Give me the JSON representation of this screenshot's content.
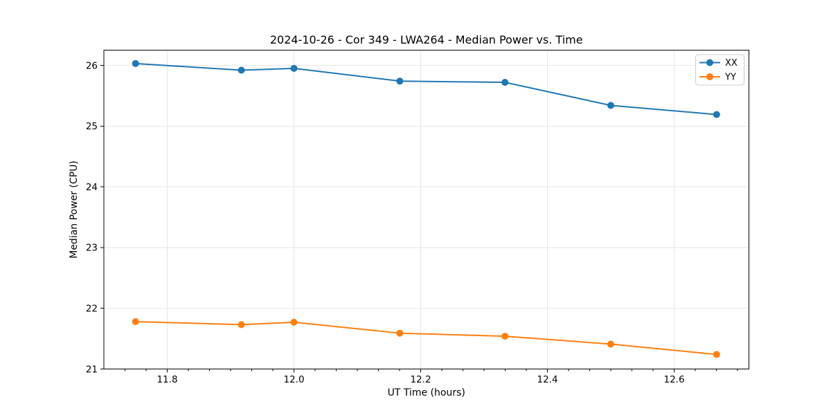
{
  "chart_data": {
    "type": "line",
    "title": "2024-10-26 - Cor 349 - LWA264 - Median Power vs. Time",
    "xlabel": "UT Time (hours)",
    "ylabel": "Median Power (CPU)",
    "xlim": [
      11.7,
      12.718
    ],
    "ylim": [
      21.0,
      26.25
    ],
    "x_major_ticks": [
      11.8,
      12.0,
      12.2,
      12.4,
      12.6
    ],
    "x_tick_decimals": 1,
    "x_minor_step": 0.0333333,
    "y_major_ticks": [
      21,
      22,
      23,
      24,
      25,
      26
    ],
    "grid": true,
    "grid_color": "#e6e6e6",
    "frame_color": "#000000",
    "background_color": "#ffffff",
    "legend_position": "upper right",
    "marker": "circle",
    "x": [
      11.75,
      11.917,
      12.0,
      12.167,
      12.333,
      12.5,
      12.667
    ],
    "series": [
      {
        "name": "XX",
        "color": "#1f77b4",
        "values": [
          26.03,
          25.92,
          25.95,
          25.74,
          25.72,
          25.34,
          25.19
        ]
      },
      {
        "name": "YY",
        "color": "#ff7f0e",
        "values": [
          21.78,
          21.73,
          21.77,
          21.59,
          21.54,
          21.41,
          21.24
        ]
      }
    ]
  }
}
